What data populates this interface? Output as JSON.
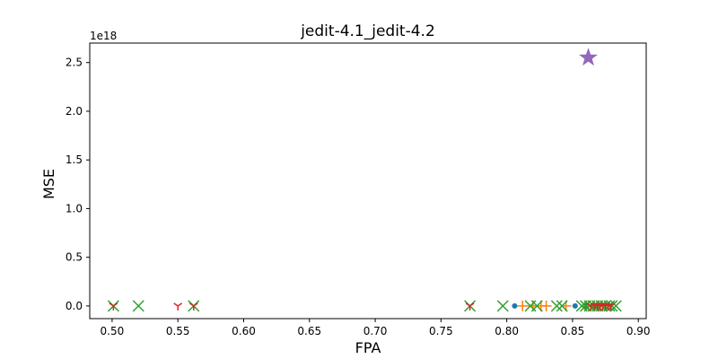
{
  "chart_data": {
    "type": "scatter",
    "title": "jedit-4.1_jedit-4.2",
    "xlabel": "FPA",
    "ylabel": "MSE",
    "y_offset_label": "1e18",
    "xlim": [
      0.483,
      0.906
    ],
    "ylim": [
      -0.13,
      2.7
    ],
    "x_ticks": [
      0.5,
      0.55,
      0.6,
      0.65,
      0.7,
      0.75,
      0.8,
      0.85,
      0.9
    ],
    "x_tick_labels": [
      "0.50",
      "0.55",
      "0.60",
      "0.65",
      "0.70",
      "0.75",
      "0.80",
      "0.85",
      "0.90"
    ],
    "y_ticks": [
      0.0,
      0.5,
      1.0,
      1.5,
      2.0,
      2.5
    ],
    "y_tick_labels": [
      "0.0",
      "0.5",
      "1.0",
      "1.5",
      "2.0",
      "2.5"
    ],
    "grid": false,
    "colors": {
      "blue": "#1f77b4",
      "orange": "#ff7f0e",
      "green": "#2ca02c",
      "red": "#d62728",
      "purple": "#9467bd"
    },
    "series": [
      {
        "marker": "circle",
        "color": "#1f77b4",
        "points": [
          [
            0.806,
            0.0
          ],
          [
            0.852,
            0.0
          ],
          [
            0.86,
            0.0
          ],
          [
            0.866,
            0.0
          ]
        ]
      },
      {
        "marker": "plus",
        "color": "#ff7f0e",
        "points": [
          [
            0.812,
            0.0
          ],
          [
            0.82,
            0.0
          ],
          [
            0.826,
            0.0
          ],
          [
            0.83,
            0.0
          ],
          [
            0.845,
            0.0
          ],
          [
            0.862,
            0.0
          ],
          [
            0.87,
            0.0
          ]
        ]
      },
      {
        "marker": "x",
        "color": "#2ca02c",
        "points": [
          [
            0.501,
            0.0
          ],
          [
            0.52,
            0.0
          ],
          [
            0.562,
            0.0
          ],
          [
            0.772,
            0.0
          ],
          [
            0.797,
            0.0
          ],
          [
            0.818,
            0.0
          ],
          [
            0.823,
            0.0
          ],
          [
            0.838,
            0.0
          ],
          [
            0.842,
            0.0
          ],
          [
            0.857,
            0.0
          ],
          [
            0.86,
            0.0
          ],
          [
            0.863,
            0.0
          ],
          [
            0.866,
            0.0
          ],
          [
            0.869,
            0.0
          ],
          [
            0.872,
            0.0
          ],
          [
            0.875,
            0.0
          ],
          [
            0.878,
            0.0
          ],
          [
            0.88,
            0.0
          ],
          [
            0.883,
            0.0
          ]
        ]
      },
      {
        "marker": "tri_down",
        "color": "#d62728",
        "points": [
          [
            0.501,
            0.0
          ],
          [
            0.55,
            0.0
          ],
          [
            0.562,
            0.0
          ],
          [
            0.772,
            0.0
          ],
          [
            0.864,
            0.0
          ],
          [
            0.867,
            0.0
          ],
          [
            0.869,
            0.0
          ],
          [
            0.871,
            0.0
          ],
          [
            0.873,
            0.0
          ],
          [
            0.875,
            0.0
          ],
          [
            0.877,
            0.0
          ],
          [
            0.879,
            0.0
          ]
        ]
      },
      {
        "marker": "star",
        "color": "#9467bd",
        "points": [
          [
            0.862,
            2.55
          ]
        ]
      }
    ]
  }
}
